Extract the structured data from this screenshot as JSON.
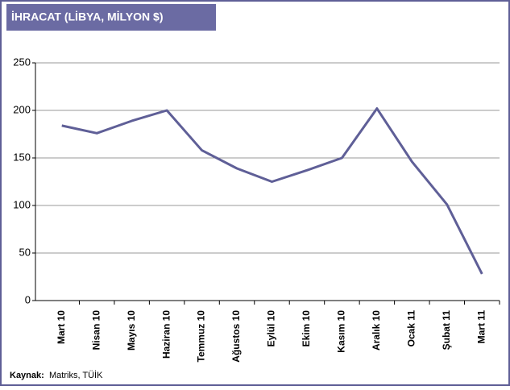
{
  "chart_data": {
    "type": "line",
    "title": "İHRACAT (LİBYA, MİLYON $)",
    "categories": [
      "Mart 10",
      "Nisan 10",
      "Mayıs 10",
      "Haziran 10",
      "Temmuz 10",
      "Ağustos 10",
      "Eylül 10",
      "Ekim 10",
      "Kasım 10",
      "Aralık 10",
      "Ocak 11",
      "Şubat 11",
      "Mart 11"
    ],
    "series": [
      {
        "name": "İhracat",
        "color": "#5f5f97",
        "values": [
          184,
          176,
          189,
          200,
          158,
          139,
          125,
          137,
          150,
          202,
          146,
          101,
          28
        ]
      }
    ],
    "ylim": [
      0,
      250
    ],
    "yticks": [
      0,
      50,
      100,
      150,
      200,
      250
    ],
    "grid": true,
    "source_label": "Kaynak:",
    "source": "Matriks, TÜİK"
  }
}
